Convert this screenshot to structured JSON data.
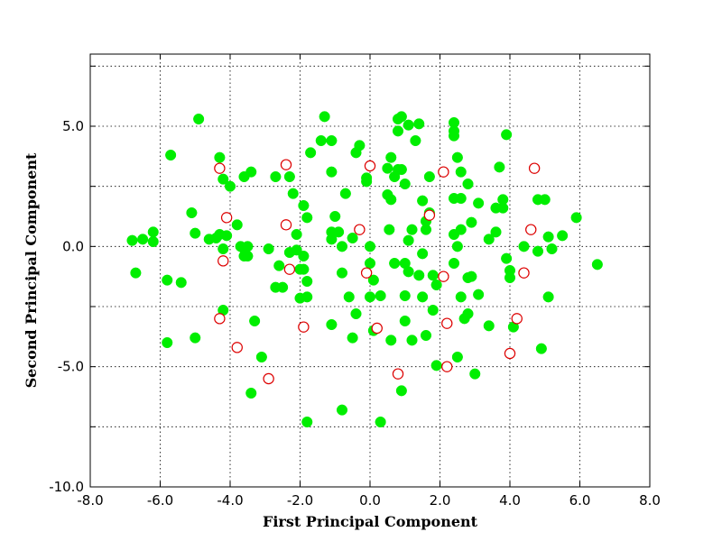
{
  "chart_data": {
    "type": "scatter",
    "title": "",
    "xlabel": "First Principal Component",
    "ylabel": "Second Principal Component",
    "xlim": [
      -8.0,
      8.0
    ],
    "ylim": [
      -10.0,
      8.0
    ],
    "xticks": [
      -8.0,
      -6.0,
      -4.0,
      -2.0,
      0.0,
      2.0,
      4.0,
      6.0,
      8.0
    ],
    "xtick_labels": [
      "-8.0",
      "-6.0",
      "-4.0",
      "-2.0",
      "0.0",
      "2.0",
      "4.0",
      "6.0",
      "8.0"
    ],
    "yticks": [
      -10.0,
      -7.5,
      -5.0,
      -2.5,
      0.0,
      2.5,
      5.0,
      7.5
    ],
    "ytick_labels": [
      "-10.0",
      "",
      "-5.0",
      "",
      "0.0",
      "",
      "5.0",
      ""
    ],
    "grid": true,
    "colors": {
      "green": "#00ee00",
      "red": "#dd0000"
    },
    "series": [
      {
        "marker": "filled-circle",
        "color": "#00ee00",
        "points": [
          [
            -6.8,
            0.25
          ],
          [
            -6.5,
            0.3
          ],
          [
            -6.7,
            -1.1
          ],
          [
            -6.2,
            0.6
          ],
          [
            -6.2,
            0.2
          ],
          [
            -5.8,
            -1.4
          ],
          [
            -5.8,
            -4.0
          ],
          [
            -5.7,
            3.8
          ],
          [
            -5.4,
            -1.5
          ],
          [
            -5.1,
            1.4
          ],
          [
            -5.0,
            0.55
          ],
          [
            -5.0,
            -3.8
          ],
          [
            -4.9,
            5.3
          ],
          [
            -4.6,
            0.3
          ],
          [
            -4.4,
            0.35
          ],
          [
            -4.3,
            0.5
          ],
          [
            -4.3,
            3.7
          ],
          [
            -4.2,
            2.8
          ],
          [
            -4.2,
            -0.1
          ],
          [
            -4.2,
            -2.65
          ],
          [
            -4.1,
            0.45
          ],
          [
            -4.0,
            2.5
          ],
          [
            -3.8,
            0.9
          ],
          [
            -3.7,
            0.0
          ],
          [
            -3.6,
            -0.1
          ],
          [
            -3.6,
            -0.4
          ],
          [
            -3.5,
            0.0
          ],
          [
            -3.5,
            -0.4
          ],
          [
            -3.6,
            2.9
          ],
          [
            -3.4,
            3.1
          ],
          [
            -3.3,
            -3.1
          ],
          [
            -3.1,
            -4.6
          ],
          [
            -3.4,
            -6.1
          ],
          [
            -2.9,
            -0.1
          ],
          [
            -2.7,
            -1.7
          ],
          [
            -2.7,
            2.9
          ],
          [
            -2.6,
            -0.8
          ],
          [
            -2.5,
            -1.7
          ],
          [
            -2.3,
            2.9
          ],
          [
            -2.3,
            -0.25
          ],
          [
            -2.2,
            2.2
          ],
          [
            -2.1,
            0.5
          ],
          [
            -2.1,
            -0.15
          ],
          [
            -2.0,
            -0.95
          ],
          [
            -2.0,
            -2.15
          ],
          [
            -1.9,
            1.7
          ],
          [
            -1.9,
            -0.4
          ],
          [
            -1.9,
            -0.95
          ],
          [
            -1.8,
            1.2
          ],
          [
            -1.8,
            -1.45
          ],
          [
            -1.8,
            -2.1
          ],
          [
            -1.7,
            3.9
          ],
          [
            -1.8,
            -7.3
          ],
          [
            -1.4,
            4.4
          ],
          [
            -1.3,
            5.4
          ],
          [
            -1.1,
            4.4
          ],
          [
            -1.1,
            3.1
          ],
          [
            -1.1,
            0.6
          ],
          [
            -1.1,
            0.3
          ],
          [
            -1.0,
            1.25
          ],
          [
            -1.1,
            -3.25
          ],
          [
            -0.9,
            0.6
          ],
          [
            -0.8,
            0.0
          ],
          [
            -0.8,
            -1.1
          ],
          [
            -0.8,
            -6.8
          ],
          [
            -0.7,
            2.2
          ],
          [
            -0.6,
            -2.1
          ],
          [
            -0.5,
            0.35
          ],
          [
            -0.4,
            3.9
          ],
          [
            -0.4,
            -2.8
          ],
          [
            -0.3,
            4.2
          ],
          [
            -0.1,
            2.85
          ],
          [
            -0.1,
            2.7
          ],
          [
            -0.5,
            -3.8
          ],
          [
            0.0,
            0.0
          ],
          [
            0.0,
            -0.7
          ],
          [
            0.0,
            -2.1
          ],
          [
            0.1,
            -3.5
          ],
          [
            0.1,
            -1.4
          ],
          [
            0.3,
            -2.05
          ],
          [
            0.3,
            -7.3
          ],
          [
            0.5,
            2.15
          ],
          [
            0.5,
            3.25
          ],
          [
            0.6,
            3.7
          ],
          [
            0.6,
            1.95
          ],
          [
            0.55,
            0.7
          ],
          [
            0.6,
            -3.9
          ],
          [
            0.7,
            -0.7
          ],
          [
            0.7,
            2.9
          ],
          [
            0.8,
            5.3
          ],
          [
            0.8,
            4.8
          ],
          [
            0.8,
            3.2
          ],
          [
            0.9,
            5.4
          ],
          [
            0.9,
            3.2
          ],
          [
            0.9,
            -6.0
          ],
          [
            1.0,
            2.6
          ],
          [
            1.0,
            -0.7
          ],
          [
            1.0,
            -2.05
          ],
          [
            1.0,
            -3.1
          ],
          [
            1.1,
            -1.05
          ],
          [
            1.1,
            5.05
          ],
          [
            1.1,
            0.25
          ],
          [
            1.2,
            0.7
          ],
          [
            1.2,
            -3.9
          ],
          [
            1.3,
            4.4
          ],
          [
            1.4,
            5.1
          ],
          [
            1.4,
            -1.2
          ],
          [
            1.5,
            -0.3
          ],
          [
            1.5,
            1.9
          ],
          [
            1.5,
            -2.1
          ],
          [
            1.6,
            1.05
          ],
          [
            1.6,
            0.7
          ],
          [
            1.6,
            -3.7
          ],
          [
            1.7,
            2.9
          ],
          [
            1.7,
            1.4
          ],
          [
            1.8,
            -1.2
          ],
          [
            1.8,
            -2.65
          ],
          [
            1.9,
            -1.6
          ],
          [
            1.9,
            -4.95
          ],
          [
            2.4,
            4.6
          ],
          [
            2.4,
            4.8
          ],
          [
            2.4,
            5.15
          ],
          [
            2.4,
            2.0
          ],
          [
            2.4,
            0.5
          ],
          [
            2.4,
            -0.7
          ],
          [
            2.5,
            -4.6
          ],
          [
            2.5,
            3.7
          ],
          [
            2.5,
            0.0
          ],
          [
            2.6,
            0.7
          ],
          [
            2.6,
            3.1
          ],
          [
            2.6,
            2.0
          ],
          [
            2.6,
            -2.1
          ],
          [
            2.7,
            -3.0
          ],
          [
            2.8,
            -1.3
          ],
          [
            2.8,
            2.6
          ],
          [
            2.8,
            -2.8
          ],
          [
            2.9,
            1.0
          ],
          [
            2.9,
            -1.25
          ],
          [
            3.0,
            -5.3
          ],
          [
            3.1,
            -2.0
          ],
          [
            3.1,
            1.8
          ],
          [
            3.4,
            0.3
          ],
          [
            3.4,
            -3.3
          ],
          [
            3.6,
            0.6
          ],
          [
            3.6,
            1.6
          ],
          [
            3.8,
            1.95
          ],
          [
            3.7,
            3.3
          ],
          [
            3.8,
            1.6
          ],
          [
            3.9,
            4.65
          ],
          [
            3.9,
            -0.5
          ],
          [
            4.0,
            -1.0
          ],
          [
            4.0,
            -1.3
          ],
          [
            4.1,
            -3.35
          ],
          [
            4.4,
            0.0
          ],
          [
            4.8,
            1.95
          ],
          [
            4.8,
            -0.2
          ],
          [
            4.9,
            -4.25
          ],
          [
            5.0,
            1.95
          ],
          [
            5.1,
            0.4
          ],
          [
            5.1,
            -2.1
          ],
          [
            5.2,
            -0.1
          ],
          [
            5.5,
            0.45
          ],
          [
            5.9,
            1.2
          ],
          [
            6.5,
            -0.75
          ]
        ]
      },
      {
        "marker": "open-circle",
        "color": "#dd0000",
        "points": [
          [
            -4.3,
            3.25
          ],
          [
            -4.1,
            1.2
          ],
          [
            -4.2,
            -0.6
          ],
          [
            -4.3,
            -3.0
          ],
          [
            -3.8,
            -4.2
          ],
          [
            -2.9,
            -5.5
          ],
          [
            -2.4,
            3.4
          ],
          [
            -2.4,
            0.9
          ],
          [
            -2.3,
            -0.95
          ],
          [
            -1.9,
            -3.35
          ],
          [
            -0.3,
            0.7
          ],
          [
            -0.1,
            -1.1
          ],
          [
            0.0,
            3.35
          ],
          [
            0.2,
            -3.4
          ],
          [
            0.8,
            -5.3
          ],
          [
            1.7,
            1.3
          ],
          [
            2.1,
            3.1
          ],
          [
            2.1,
            -1.25
          ],
          [
            2.2,
            -3.2
          ],
          [
            2.2,
            -5.0
          ],
          [
            4.0,
            -4.45
          ],
          [
            4.2,
            -3.0
          ],
          [
            4.4,
            -1.1
          ],
          [
            4.6,
            0.7
          ],
          [
            4.7,
            3.25
          ]
        ]
      }
    ]
  }
}
